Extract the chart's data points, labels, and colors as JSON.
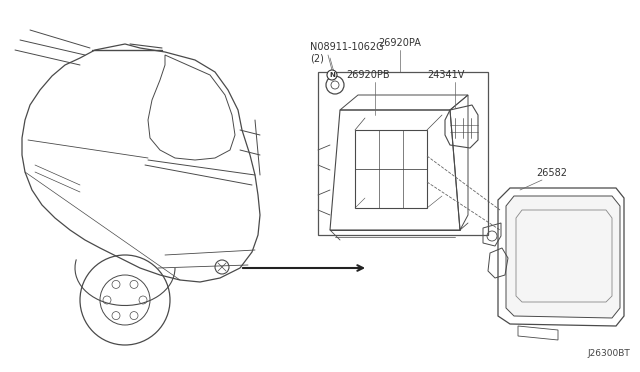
{
  "fig_width": 6.4,
  "fig_height": 3.72,
  "dpi": 100,
  "labels": {
    "N08911_1062G": "N08911-1062G\n(2)",
    "26920PA": "26920PA",
    "26920PB": "26920PB",
    "24341V": "24341V",
    "26582": "26582",
    "J26300BT": "J26300BT"
  },
  "lc": "#4a4a4a",
  "tc": "#333333",
  "fs": 7.0
}
